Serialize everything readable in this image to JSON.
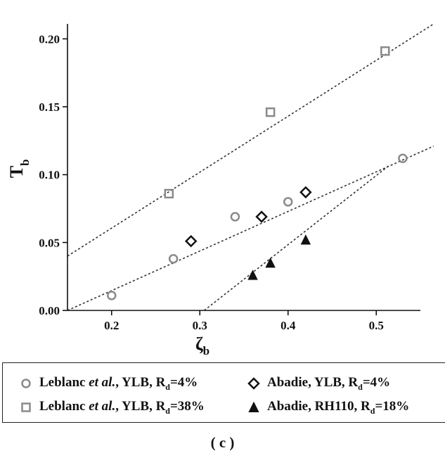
{
  "chart_data": {
    "type": "scatter",
    "xlabel_main": "ζ",
    "xlabel_sub": "b",
    "ylabel_main": "T",
    "ylabel_sub": "b",
    "xlim": [
      0.15,
      0.55
    ],
    "ylim": [
      0.0,
      0.21
    ],
    "xticks": [
      0.2,
      0.3,
      0.4,
      0.5
    ],
    "xtick_labels": [
      "0.2",
      "0.3",
      "0.4",
      "0.5"
    ],
    "yticks": [
      0.0,
      0.05,
      0.1,
      0.15,
      0.2
    ],
    "ytick_labels": [
      "0.00",
      "0.05",
      "0.10",
      "0.15",
      "0.20"
    ],
    "grid": false,
    "legend_position": "bottom",
    "series": [
      {
        "marker": "circle",
        "color": "#8a8a8a",
        "legend": {
          "pre": "Leblanc ",
          "ital": "et al.",
          "post": ", YLB, R",
          "sub": "d",
          "tail": "=4%"
        },
        "points": [
          [
            0.2,
            0.011
          ],
          [
            0.27,
            0.038
          ],
          [
            0.34,
            0.069
          ],
          [
            0.4,
            0.08
          ],
          [
            0.53,
            0.112
          ]
        ]
      },
      {
        "marker": "diamond",
        "color": "#111111",
        "legend": {
          "pre": "Abadie, YLB, R",
          "ital": "",
          "post": "",
          "sub": "d",
          "tail": "=4%"
        },
        "points": [
          [
            0.29,
            0.051
          ],
          [
            0.37,
            0.069
          ],
          [
            0.42,
            0.087
          ]
        ]
      },
      {
        "marker": "square",
        "color": "#8a8a8a",
        "legend": {
          "pre": "Leblanc ",
          "ital": "et al.",
          "post": ", YLB, R",
          "sub": "d",
          "tail": "=38%"
        },
        "points": [
          [
            0.265,
            0.086
          ],
          [
            0.38,
            0.146
          ],
          [
            0.51,
            0.191
          ]
        ]
      },
      {
        "marker": "triangle",
        "color": "#111111",
        "legend": {
          "pre": "Abadie, RH110, R",
          "ital": "",
          "post": "",
          "sub": "d",
          "tail": "=18%"
        },
        "points": [
          [
            0.36,
            0.026
          ],
          [
            0.38,
            0.035
          ],
          [
            0.42,
            0.052
          ]
        ]
      }
    ],
    "fit_lines": [
      {
        "style": "dotted",
        "from": [
          0.15,
          0.04
        ],
        "to": [
          0.565,
          0.211
        ]
      },
      {
        "style": "dotted",
        "from": [
          0.15,
          0.0
        ],
        "to": [
          0.565,
          0.121
        ]
      },
      {
        "style": "dotted",
        "from": [
          0.305,
          0.0
        ],
        "to": [
          0.515,
          0.107
        ]
      }
    ],
    "panel_label": "( c )"
  }
}
